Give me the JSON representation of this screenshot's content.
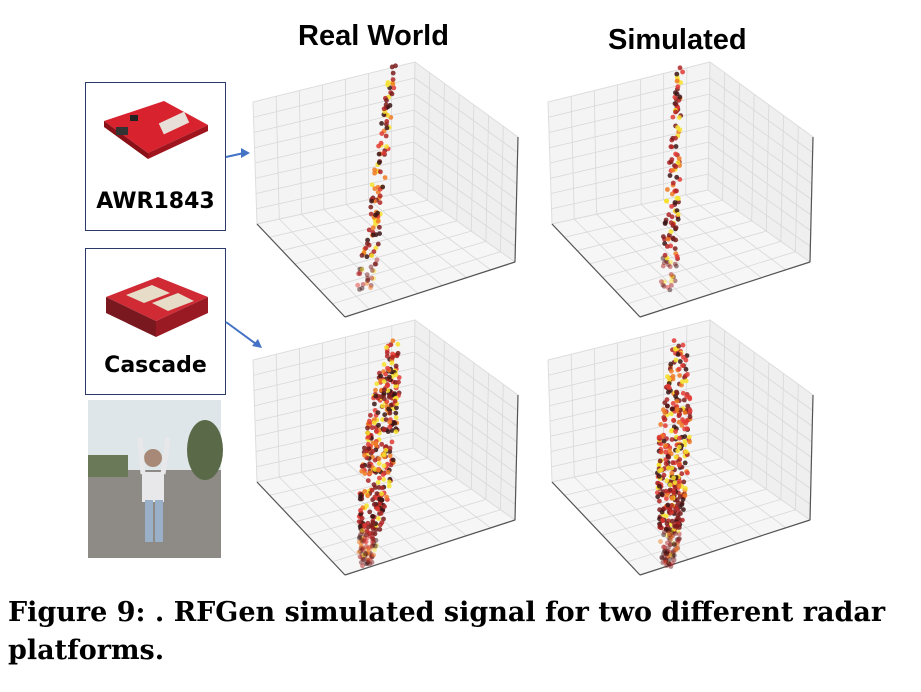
{
  "figure": {
    "column_titles": [
      "Real World",
      "Simulated"
    ],
    "devices": [
      {
        "label": "AWR1843",
        "board_color": "#d8232f"
      },
      {
        "label": "Cascade",
        "board_color": "#d02a35"
      }
    ],
    "caption": "Figure 9: . RFGen simulated signal for two different radar platforms.",
    "arrow_color": "#4472c4",
    "point_colors": [
      "#3b1414",
      "#7a1c1c",
      "#b02424",
      "#e33a33",
      "#f07a22",
      "#f6e02a"
    ],
    "panels": [
      {
        "row": "AWR1843",
        "column": "Real World"
      },
      {
        "row": "AWR1843",
        "column": "Simulated"
      },
      {
        "row": "Cascade",
        "column": "Real World"
      },
      {
        "row": "Cascade",
        "column": "Simulated"
      }
    ]
  }
}
